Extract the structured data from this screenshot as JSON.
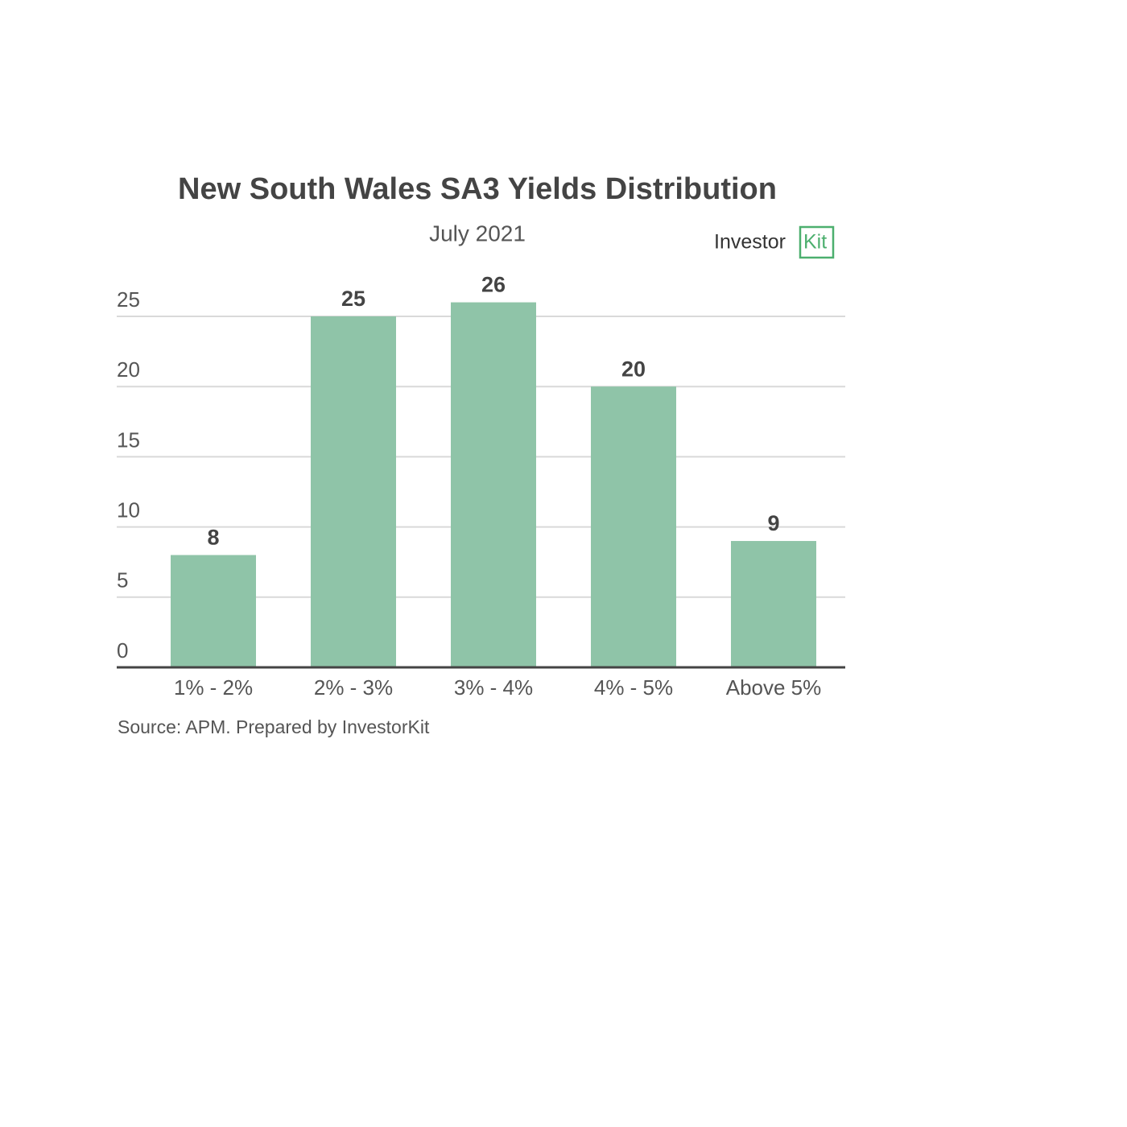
{
  "chart_data": {
    "type": "bar",
    "title": "New South Wales SA3 Yields Distribution",
    "subtitle": "July 2021",
    "brand": [
      "Investor",
      "Kit"
    ],
    "categories": [
      "1% - 2%",
      "2% - 3%",
      "3% - 4%",
      "4% - 5%",
      "Above 5%"
    ],
    "values": [
      8,
      25,
      26,
      20,
      9
    ],
    "color": "#8fc4a8",
    "ylim": [
      0,
      25
    ],
    "yticks": [
      0,
      5,
      10,
      15,
      20,
      25
    ],
    "grid": true,
    "source": "Source: APM. Prepared by InvestorKit"
  }
}
